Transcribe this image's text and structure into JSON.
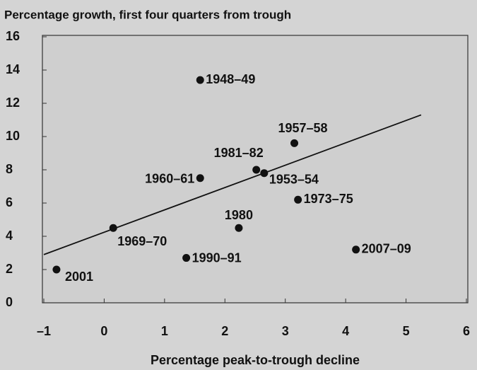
{
  "chart_data": {
    "type": "scatter",
    "title": "Percentage growth, first four quarters from trough",
    "x_label": "Percentage peak-to-trough decline",
    "point_labels": [
      "2001",
      "1969–70",
      "1990–91",
      "1960–61",
      "1948–49",
      "1980",
      "1981–82",
      "1953–54",
      "1957–58",
      "1973–75",
      "2007–09"
    ],
    "x": [
      -0.79,
      0.15,
      1.36,
      1.59,
      1.59,
      2.23,
      2.52,
      2.65,
      3.15,
      3.21,
      4.17
    ],
    "values": [
      2.0,
      4.5,
      2.7,
      7.5,
      13.4,
      4.5,
      8.0,
      7.8,
      9.6,
      6.2,
      3.2
    ],
    "color": "#111111",
    "trend_line": {
      "x": [
        -1,
        5.25
      ],
      "values": [
        2.9,
        11.3
      ]
    },
    "xlim": [
      -1,
      6
    ],
    "xticks": [
      {
        "value": -1,
        "label": "–1"
      },
      0,
      1,
      2,
      3,
      4,
      5,
      6
    ],
    "ylim": [
      0,
      16
    ],
    "yticks": [
      0,
      2,
      4,
      6,
      8,
      10,
      12,
      14,
      16
    ]
  }
}
